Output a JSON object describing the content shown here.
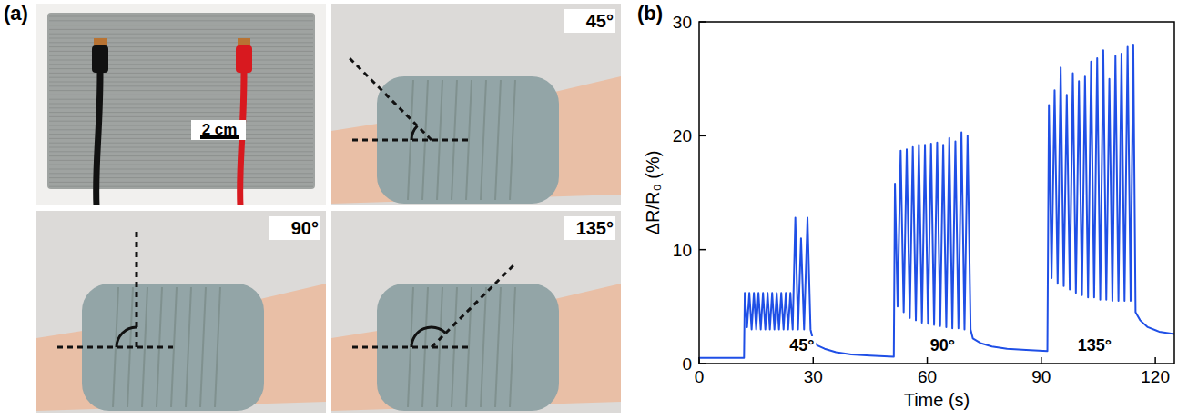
{
  "panels": [
    "(a)",
    "(b)"
  ],
  "photos": {
    "scale_bar": "2 cm",
    "angles": [
      "45°",
      "90°",
      "135°"
    ]
  },
  "chart_data": {
    "type": "line",
    "xlabel": "Time (s)",
    "ylabel": "ΔR/R₀ (%)",
    "color": "#1f4fe6",
    "xlim": [
      0,
      125
    ],
    "xticks": [
      0,
      30,
      60,
      90,
      120
    ],
    "ylim": [
      0,
      30
    ],
    "yticks": [
      0,
      10,
      20,
      30
    ],
    "grid": false,
    "annotations": [
      {
        "text": "45°",
        "x": 27,
        "y": 1.6
      },
      {
        "text": "90°",
        "x": 64,
        "y": 1.6
      },
      {
        "text": "135°",
        "x": 104,
        "y": 1.6
      }
    ],
    "x": [
      0,
      11.8,
      12,
      12.6,
      13.2,
      13.8,
      14.4,
      15.0,
      15.6,
      16.2,
      16.8,
      17.4,
      18.0,
      18.6,
      19.2,
      19.8,
      20.4,
      21.0,
      21.6,
      22.2,
      22.8,
      23.4,
      24.0,
      24.6,
      25.3,
      26.0,
      26.8,
      27.6,
      28.5,
      29.3,
      30,
      31,
      33,
      36,
      40,
      45,
      51.2,
      51.5,
      52.2,
      53,
      53.8,
      54.6,
      55.4,
      56.2,
      57,
      57.8,
      58.6,
      59.4,
      60.2,
      61,
      61.8,
      62.6,
      63.4,
      64.2,
      65,
      65.8,
      66.6,
      67.4,
      68.2,
      69,
      69.8,
      70.6,
      71.4,
      72,
      74,
      77,
      81,
      86,
      91.6,
      92,
      92.7,
      93.5,
      94.3,
      95.1,
      95.9,
      96.7,
      97.5,
      98.3,
      99.1,
      99.9,
      100.7,
      101.5,
      102.3,
      103.1,
      103.9,
      104.7,
      105.5,
      106.3,
      107.1,
      107.9,
      108.7,
      109.5,
      110.3,
      111.1,
      111.9,
      112.7,
      113.5,
      114.2,
      114.8,
      116,
      118,
      121,
      125
    ],
    "values": [
      0.5,
      0.5,
      6.2,
      3.2,
      6.2,
      3.0,
      6.2,
      3.0,
      6.2,
      3.0,
      6.2,
      3.0,
      6.2,
      3.0,
      6.2,
      3.0,
      6.2,
      3.0,
      6.2,
      3.0,
      6.2,
      3.0,
      6.2,
      3.0,
      12.8,
      3.0,
      11.0,
      3.0,
      12.8,
      3.0,
      2.0,
      1.6,
      1.3,
      1.0,
      0.8,
      0.7,
      0.6,
      15.8,
      5.0,
      18.7,
      4.5,
      18.8,
      4.0,
      19.0,
      3.8,
      19.2,
      3.6,
      19.2,
      3.5,
      19.3,
      3.4,
      19.4,
      3.3,
      19.2,
      3.2,
      19.8,
      3.1,
      19.5,
      3.1,
      20.3,
      3.0,
      20.0,
      3.0,
      2.2,
      1.8,
      1.5,
      1.3,
      1.2,
      1.1,
      22.7,
      7.5,
      24.0,
      7.0,
      26.0,
      6.8,
      23.6,
      6.5,
      25.5,
      6.2,
      24.8,
      6.0,
      25.2,
      5.8,
      26.5,
      5.8,
      26.8,
      5.6,
      27.5,
      5.6,
      25.0,
      5.5,
      27.0,
      5.5,
      27.2,
      5.5,
      27.8,
      5.5,
      28.0,
      4.5,
      3.8,
      3.2,
      2.8,
      2.6
    ]
  }
}
